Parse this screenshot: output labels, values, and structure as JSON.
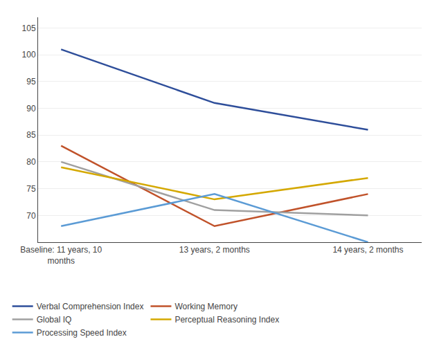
{
  "chart_data": {
    "type": "line",
    "categories": [
      "Baseline: 11 years, 10\nmonths",
      "13 years, 2 months",
      "14 years, 2 months"
    ],
    "series": [
      {
        "name": "Verbal Comprehension Index",
        "color": "#2E4E9A",
        "values": [
          101,
          91,
          86
        ]
      },
      {
        "name": "Working Memory",
        "color": "#C0522A",
        "values": [
          83,
          68,
          74
        ]
      },
      {
        "name": "Global IQ",
        "color": "#A0A0A0",
        "values": [
          80,
          71,
          70
        ]
      },
      {
        "name": "Perceptual Reasoning Index",
        "color": "#D4A800",
        "values": [
          79,
          73,
          77
        ]
      },
      {
        "name": "Processing Speed Index",
        "color": "#5B9BD5",
        "values": [
          68,
          74,
          65
        ]
      }
    ],
    "ylim": [
      65,
      107
    ],
    "yticks": [
      70,
      75,
      80,
      85,
      90,
      95,
      100,
      105
    ],
    "grid": true,
    "legend": "bottom"
  }
}
